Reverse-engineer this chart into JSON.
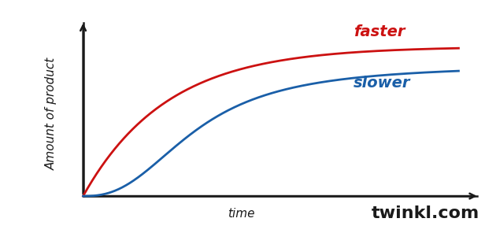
{
  "background_color": "#ffffff",
  "faster_color": "#cc1111",
  "slower_color": "#1a5fa8",
  "axis_color": "#1a1a1a",
  "ylabel": "Amount of product",
  "xlabel": "time",
  "faster_label": "faster",
  "slower_label": "slower",
  "watermark": "twinkl.com",
  "watermark_color": "#1a1a1a",
  "faster_asymptote": 0.82,
  "slower_asymptote": 0.72,
  "faster_rate": 4.5,
  "slower_n": 2.5,
  "slower_k": 3.0,
  "xlabel_fontsize": 11,
  "ylabel_fontsize": 11,
  "label_fontsize": 14,
  "watermark_fontsize": 16
}
